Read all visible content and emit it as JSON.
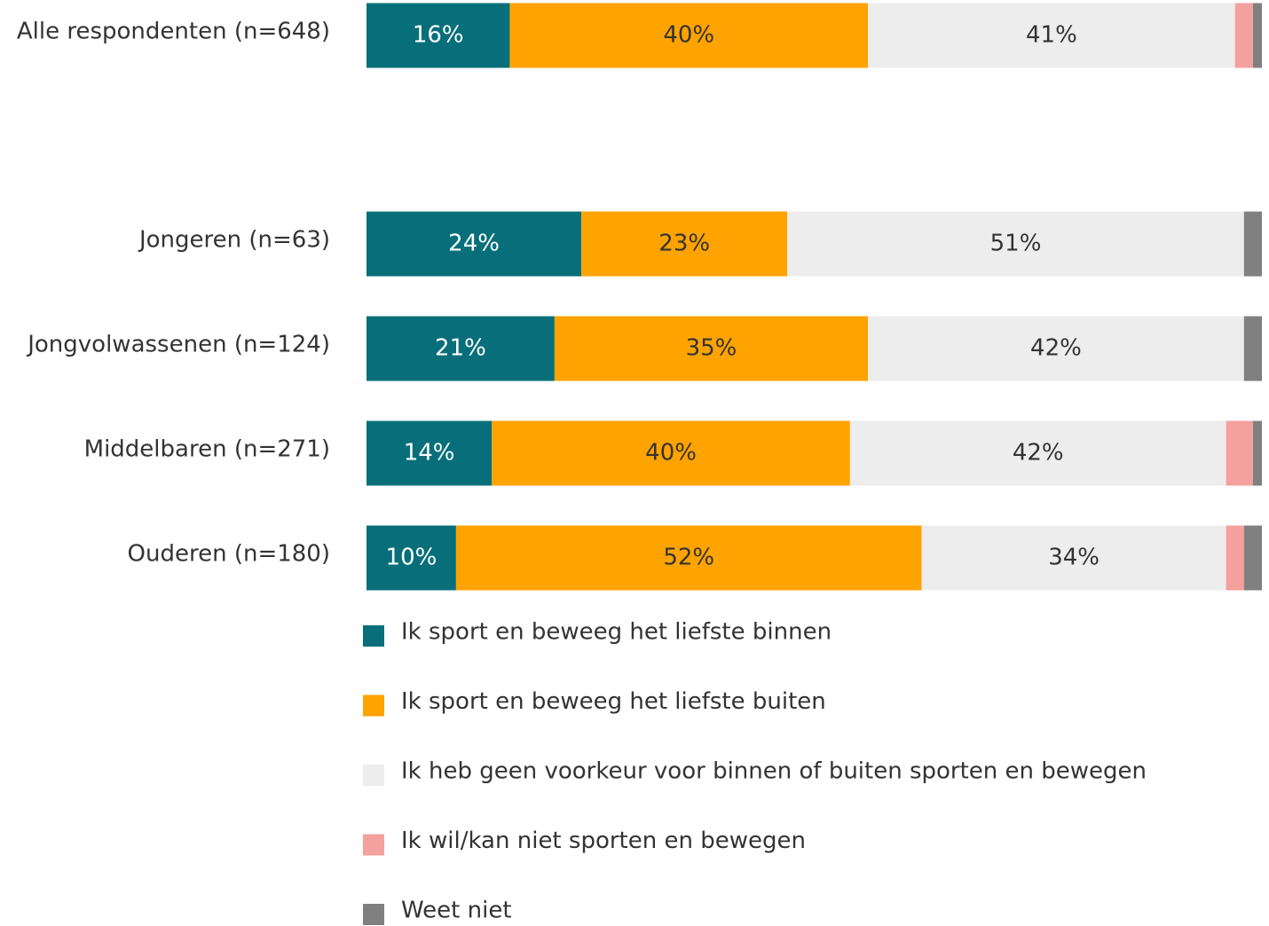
{
  "chart_data": {
    "type": "stacked-bar-horizontal",
    "categories": [
      "Alle respondenten (n=648)",
      "Jongeren (n=63)",
      "Jongvolwassenen (n=124)",
      "Middelbaren (n=271)",
      "Ouderen (n=180)"
    ],
    "xlim": [
      0,
      100
    ],
    "legend": "bottom",
    "series": [
      {
        "name": "Ik sport en beweeg het liefste binnen",
        "color": "#086f7a",
        "values": [
          16,
          24,
          21,
          14,
          10
        ],
        "value_labels": [
          "16%",
          "24%",
          "21%",
          "14%",
          "10%"
        ],
        "label_color": "#ffffff"
      },
      {
        "name": "Ik sport en beweeg het liefste buiten",
        "color": "#ffa300",
        "values": [
          40,
          23,
          35,
          40,
          52
        ],
        "value_labels": [
          "40%",
          "23%",
          "35%",
          "40%",
          "52%"
        ],
        "label_color": "#333333"
      },
      {
        "name": "Ik heb geen voorkeur voor binnen of buiten sporten en bewegen",
        "color": "#ededed",
        "values": [
          41,
          51,
          42,
          42,
          34
        ],
        "value_labels": [
          "41%",
          "51%",
          "42%",
          "42%",
          "34%"
        ],
        "label_color": "#333333"
      },
      {
        "name": "Ik wil/kan niet sporten en bewegen",
        "color": "#f4a09c",
        "values": [
          2,
          0,
          0,
          3,
          2
        ]
      },
      {
        "name": "Weet niet",
        "color": "#808080",
        "values": [
          1,
          2,
          2,
          1,
          2
        ]
      }
    ]
  }
}
